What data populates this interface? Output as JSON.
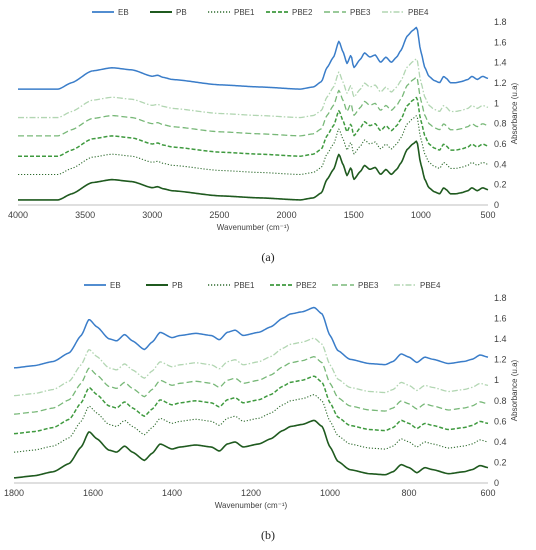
{
  "colors": {
    "EB": "#3a7dc9",
    "PB": "#1f5a1f",
    "PBE1": "#2f6b2f",
    "PBE2": "#3f9a3f",
    "PBE3": "#78b878",
    "PBE4": "#b2d6b2"
  },
  "captions": [
    "(a)",
    "(b)"
  ],
  "chart_data": [
    {
      "type": "line",
      "xlabel": "Wavenumber (cm⁻¹)",
      "ylabel": "Absorbance (u.a)",
      "xlim": [
        4000,
        500
      ],
      "ylim": [
        0,
        1.8
      ],
      "x_ticks": [
        "4000",
        "3500",
        "3000",
        "2500",
        "2000",
        "1500",
        "1000",
        "500"
      ],
      "y_ticks": [
        "0",
        "0.2",
        "0.4",
        "0.6",
        "0.8",
        "1",
        "1.2",
        "1.4",
        "1.6",
        "1.8"
      ],
      "legend_position": "top",
      "profile": [
        [
          4000,
          0
        ],
        [
          3700,
          0
        ],
        [
          3600,
          0.06
        ],
        [
          3450,
          0.17
        ],
        [
          3300,
          0.2
        ],
        [
          3150,
          0.18
        ],
        [
          3000,
          0.12
        ],
        [
          2960,
          0.13
        ],
        [
          2920,
          0.11
        ],
        [
          2850,
          0.09
        ],
        [
          2500,
          0.04
        ],
        [
          2200,
          0.02
        ],
        [
          1900,
          0.0
        ],
        [
          1800,
          0.02
        ],
        [
          1740,
          0.07
        ],
        [
          1700,
          0.2
        ],
        [
          1650,
          0.3
        ],
        [
          1610,
          0.45
        ],
        [
          1580,
          0.35
        ],
        [
          1550,
          0.24
        ],
        [
          1520,
          0.32
        ],
        [
          1500,
          0.2
        ],
        [
          1450,
          0.28
        ],
        [
          1420,
          0.34
        ],
        [
          1380,
          0.3
        ],
        [
          1340,
          0.32
        ],
        [
          1300,
          0.25
        ],
        [
          1260,
          0.3
        ],
        [
          1220,
          0.25
        ],
        [
          1180,
          0.3
        ],
        [
          1150,
          0.36
        ],
        [
          1100,
          0.5
        ],
        [
          1060,
          0.55
        ],
        [
          1030,
          0.58
        ],
        [
          1000,
          0.35
        ],
        [
          970,
          0.2
        ],
        [
          940,
          0.12
        ],
        [
          900,
          0.08
        ],
        [
          860,
          0.06
        ],
        [
          830,
          0.12
        ],
        [
          810,
          0.1
        ],
        [
          780,
          0.06
        ],
        [
          740,
          0.06
        ],
        [
          700,
          0.07
        ],
        [
          650,
          0.09
        ],
        [
          620,
          0.12
        ],
        [
          580,
          0.09
        ],
        [
          540,
          0.12
        ],
        [
          500,
          0.1
        ]
      ],
      "series": [
        {
          "name": "EB",
          "offset": 1.14,
          "scale": 1.05
        },
        {
          "name": "PB",
          "offset": 0.05,
          "scale": 1.0
        },
        {
          "name": "PBE1",
          "offset": 0.3,
          "scale": 1.0
        },
        {
          "name": "PBE2",
          "offset": 0.48,
          "scale": 1.0
        },
        {
          "name": "PBE3",
          "offset": 0.68,
          "scale": 1.0
        },
        {
          "name": "PBE4",
          "offset": 0.86,
          "scale": 1.0
        }
      ]
    },
    {
      "type": "line",
      "xlabel": "Wavenumber (cm⁻¹)",
      "ylabel": "Absorbance (u.a)",
      "xlim": [
        1800,
        600
      ],
      "ylim": [
        0,
        1.8
      ],
      "x_ticks": [
        "1800",
        "1600",
        "1400",
        "1200",
        "1000",
        "800",
        "600"
      ],
      "y_ticks": [
        "0",
        "0.2",
        "0.4",
        "0.6",
        "0.8",
        "1",
        "1.2",
        "1.4",
        "1.6",
        "1.8"
      ],
      "legend_position": "top",
      "profile": [
        [
          1800,
          0
        ],
        [
          1750,
          0.02
        ],
        [
          1700,
          0.06
        ],
        [
          1660,
          0.14
        ],
        [
          1630,
          0.3
        ],
        [
          1610,
          0.45
        ],
        [
          1590,
          0.38
        ],
        [
          1560,
          0.27
        ],
        [
          1540,
          0.25
        ],
        [
          1520,
          0.31
        ],
        [
          1500,
          0.25
        ],
        [
          1470,
          0.17
        ],
        [
          1450,
          0.24
        ],
        [
          1430,
          0.33
        ],
        [
          1400,
          0.28
        ],
        [
          1380,
          0.3
        ],
        [
          1340,
          0.32
        ],
        [
          1300,
          0.3
        ],
        [
          1280,
          0.26
        ],
        [
          1260,
          0.33
        ],
        [
          1240,
          0.35
        ],
        [
          1220,
          0.3
        ],
        [
          1180,
          0.33
        ],
        [
          1150,
          0.38
        ],
        [
          1120,
          0.46
        ],
        [
          1100,
          0.5
        ],
        [
          1070,
          0.52
        ],
        [
          1040,
          0.56
        ],
        [
          1020,
          0.5
        ],
        [
          1000,
          0.3
        ],
        [
          980,
          0.16
        ],
        [
          950,
          0.08
        ],
        [
          900,
          0.04
        ],
        [
          860,
          0.03
        ],
        [
          840,
          0.06
        ],
        [
          820,
          0.13
        ],
        [
          800,
          0.1
        ],
        [
          780,
          0.05
        ],
        [
          760,
          0.1
        ],
        [
          740,
          0.08
        ],
        [
          700,
          0.04
        ],
        [
          660,
          0.06
        ],
        [
          640,
          0.08
        ],
        [
          620,
          0.12
        ],
        [
          600,
          0.1
        ]
      ],
      "series": [
        {
          "name": "EB",
          "offset": 1.12,
          "scale": 1.05
        },
        {
          "name": "PB",
          "offset": 0.05,
          "scale": 1.0
        },
        {
          "name": "PBE1",
          "offset": 0.3,
          "scale": 1.0
        },
        {
          "name": "PBE2",
          "offset": 0.48,
          "scale": 1.0
        },
        {
          "name": "PBE3",
          "offset": 0.67,
          "scale": 1.0
        },
        {
          "name": "PBE4",
          "offset": 0.85,
          "scale": 1.0
        }
      ]
    }
  ]
}
